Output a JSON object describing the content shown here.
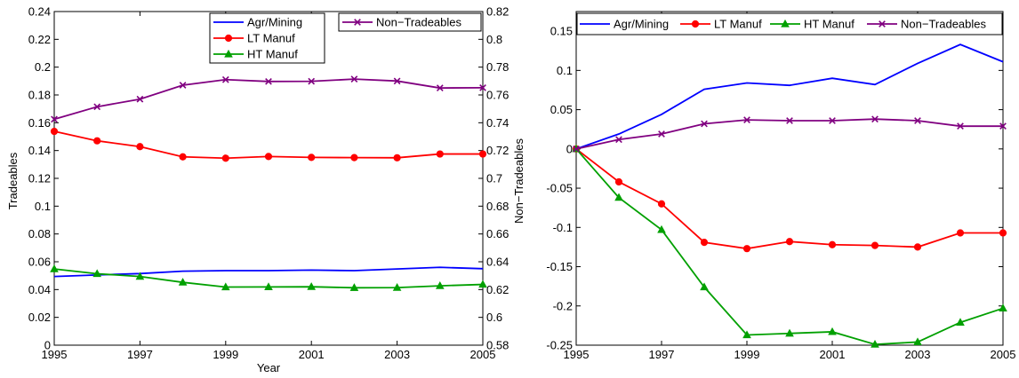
{
  "chart_data": [
    {
      "type": "line",
      "xlabel": "Year",
      "ylabel": "Tradeables",
      "y2label": "Non−Tradeables",
      "xlim": [
        1995,
        2005
      ],
      "xticks": [
        "1995",
        "1997",
        "1999",
        "2001",
        "2003",
        "2005"
      ],
      "ylim": [
        0,
        0.24
      ],
      "yticks": [
        "0",
        "0.02",
        "0.04",
        "0.06",
        "0.08",
        "0.1",
        "0.12",
        "0.14",
        "0.16",
        "0.18",
        "0.2",
        "0.22",
        "0.24"
      ],
      "y2lim": [
        0.58,
        0.82
      ],
      "y2ticks": [
        "0.58",
        "0.6",
        "0.62",
        "0.64",
        "0.66",
        "0.68",
        "0.7",
        "0.72",
        "0.74",
        "0.76",
        "0.78",
        "0.8",
        "0.82"
      ],
      "grid": false,
      "legend_placement": "top-right",
      "x": [
        1995,
        1996,
        1997,
        1998,
        1999,
        2000,
        2001,
        2002,
        2003,
        2004,
        2005
      ],
      "series": [
        {
          "name": "Agr/Mining",
          "axis": "left",
          "color": "#0000ff",
          "marker": "none",
          "values": [
            0.0494,
            0.0505,
            0.0515,
            0.0532,
            0.0536,
            0.0536,
            0.054,
            0.0536,
            0.0548,
            0.056,
            0.055
          ]
        },
        {
          "name": "LT Manuf",
          "axis": "left",
          "color": "#ff0000",
          "marker": "circle",
          "values": [
            0.1538,
            0.147,
            0.1428,
            0.1355,
            0.1345,
            0.1357,
            0.1351,
            0.1349,
            0.1348,
            0.1375,
            0.1375
          ]
        },
        {
          "name": "HT Manuf",
          "axis": "left",
          "color": "#00a000",
          "marker": "triangle",
          "values": [
            0.0548,
            0.0514,
            0.0494,
            0.0452,
            0.0418,
            0.0419,
            0.042,
            0.0413,
            0.0414,
            0.0427,
            0.0437
          ]
        },
        {
          "name": "Non−Tradeables",
          "axis": "right",
          "color": "#800080",
          "marker": "x",
          "values": [
            0.7425,
            0.7515,
            0.757,
            0.767,
            0.771,
            0.7697,
            0.7698,
            0.7714,
            0.77,
            0.765,
            0.7652
          ]
        }
      ]
    },
    {
      "type": "line",
      "xlabel": "",
      "ylabel": "",
      "xlim": [
        1995,
        2005
      ],
      "xticks": [
        "1995",
        "1997",
        "1999",
        "2001",
        "2003",
        "2005"
      ],
      "ylim": [
        -0.25,
        0.175
      ],
      "yticks": [
        "-0.25",
        "-0.2",
        "-0.15",
        "-0.1",
        "-0.05",
        "0",
        "0.05",
        "0.1",
        "0.15"
      ],
      "grid": false,
      "legend_placement": "top",
      "x": [
        1995,
        1996,
        1997,
        1998,
        1999,
        2000,
        2001,
        2002,
        2003,
        2004,
        2005
      ],
      "series": [
        {
          "name": "Agr/Mining",
          "color": "#0000ff",
          "marker": "none",
          "values": [
            0,
            0.019,
            0.044,
            0.076,
            0.084,
            0.081,
            0.09,
            0.082,
            0.109,
            0.133,
            0.111
          ]
        },
        {
          "name": "LT Manuf",
          "color": "#ff0000",
          "marker": "circle",
          "values": [
            0,
            -0.042,
            -0.07,
            -0.119,
            -0.127,
            -0.118,
            -0.122,
            -0.123,
            -0.125,
            -0.107,
            -0.107
          ]
        },
        {
          "name": "HT Manuf",
          "color": "#00a000",
          "marker": "triangle",
          "values": [
            0,
            -0.062,
            -0.103,
            -0.176,
            -0.237,
            -0.235,
            -0.233,
            -0.249,
            -0.246,
            -0.221,
            -0.203
          ]
        },
        {
          "name": "Non−Tradeables",
          "color": "#800080",
          "marker": "x",
          "values": [
            0,
            0.012,
            0.019,
            0.032,
            0.037,
            0.036,
            0.036,
            0.038,
            0.036,
            0.029,
            0.029
          ]
        }
      ]
    }
  ]
}
